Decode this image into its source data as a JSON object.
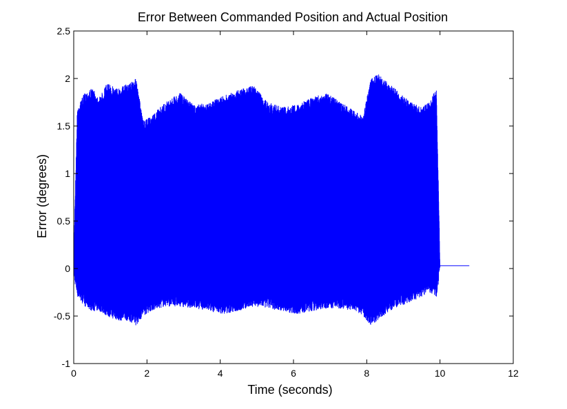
{
  "chart_data": {
    "type": "line",
    "title": "Error Between Commanded Position and Actual Position",
    "xlabel": "Time (seconds)",
    "ylabel": "Error (degrees)",
    "xlim": [
      0,
      12
    ],
    "ylim": [
      -1,
      2.5
    ],
    "xticks": [
      0,
      2,
      4,
      6,
      8,
      10,
      12
    ],
    "yticks": [
      -1,
      -0.5,
      0,
      0.5,
      1,
      1.5,
      2,
      2.5
    ],
    "grid": false,
    "legend": "none",
    "series_color": "#0000ff",
    "series": [
      {
        "style": "dense oscillation",
        "upper_envelope": {
          "x": [
            0.0,
            0.1,
            0.3,
            0.5,
            0.7,
            0.9,
            1.2,
            1.5,
            1.7,
            1.9,
            2.1,
            2.5,
            2.9,
            3.3,
            3.7,
            4.1,
            4.5,
            4.9,
            5.3,
            5.7,
            6.1,
            6.5,
            6.9,
            7.3,
            7.7,
            7.9,
            8.1,
            8.3,
            8.6,
            8.9,
            9.2,
            9.5,
            9.7,
            9.9,
            10.0
          ],
          "y": [
            0.2,
            1.7,
            1.85,
            1.9,
            1.8,
            1.95,
            1.9,
            1.95,
            2.0,
            1.55,
            1.6,
            1.75,
            1.85,
            1.72,
            1.75,
            1.82,
            1.88,
            1.93,
            1.75,
            1.7,
            1.73,
            1.8,
            1.85,
            1.75,
            1.65,
            1.6,
            2.0,
            2.05,
            1.95,
            1.85,
            1.75,
            1.7,
            1.75,
            1.9,
            0.1
          ]
        },
        "lower_envelope": {
          "x": [
            0.0,
            0.1,
            0.3,
            0.5,
            0.7,
            0.9,
            1.2,
            1.5,
            1.7,
            1.9,
            2.1,
            2.5,
            2.9,
            3.3,
            3.7,
            4.1,
            4.5,
            4.9,
            5.3,
            5.7,
            6.1,
            6.5,
            6.9,
            7.3,
            7.7,
            7.9,
            8.1,
            8.3,
            8.6,
            8.9,
            9.2,
            9.5,
            9.7,
            9.9,
            10.0
          ],
          "y": [
            -0.1,
            -0.3,
            -0.4,
            -0.45,
            -0.45,
            -0.5,
            -0.55,
            -0.55,
            -0.6,
            -0.5,
            -0.45,
            -0.4,
            -0.4,
            -0.42,
            -0.45,
            -0.48,
            -0.45,
            -0.4,
            -0.42,
            -0.45,
            -0.48,
            -0.45,
            -0.42,
            -0.42,
            -0.45,
            -0.5,
            -0.6,
            -0.55,
            -0.45,
            -0.4,
            -0.35,
            -0.3,
            -0.25,
            -0.3,
            -0.05
          ]
        }
      },
      {
        "style": "flat tail",
        "x": [
          10.0,
          10.8
        ],
        "y": [
          0.03,
          0.03
        ]
      }
    ]
  }
}
